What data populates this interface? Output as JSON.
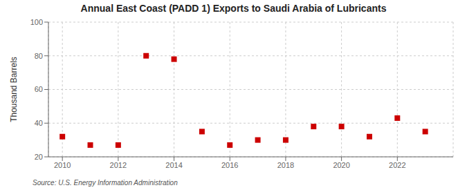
{
  "chart_data": {
    "type": "scatter",
    "title": "Annual East Coast (PADD 1) Exports to Saudi Arabia of Lubricants",
    "ylabel": "Thousand Barrels",
    "annotation": "Source: U.S. Energy Information Administration",
    "x": [
      2010,
      2011,
      2012,
      2013,
      2014,
      2015,
      2016,
      2017,
      2018,
      2019,
      2020,
      2021,
      2022,
      2023
    ],
    "values": [
      32,
      27,
      27,
      80,
      78,
      35,
      27,
      30,
      30,
      38,
      38,
      32,
      43,
      35
    ],
    "color": "#cc0000",
    "marker": "square",
    "xlim": [
      2009.5,
      2024
    ],
    "xticks": [
      2010,
      2012,
      2014,
      2016,
      2018,
      2020,
      2022
    ],
    "ylim": [
      20,
      100
    ],
    "yticks": [
      20,
      40,
      60,
      80,
      100
    ],
    "grid": true
  }
}
